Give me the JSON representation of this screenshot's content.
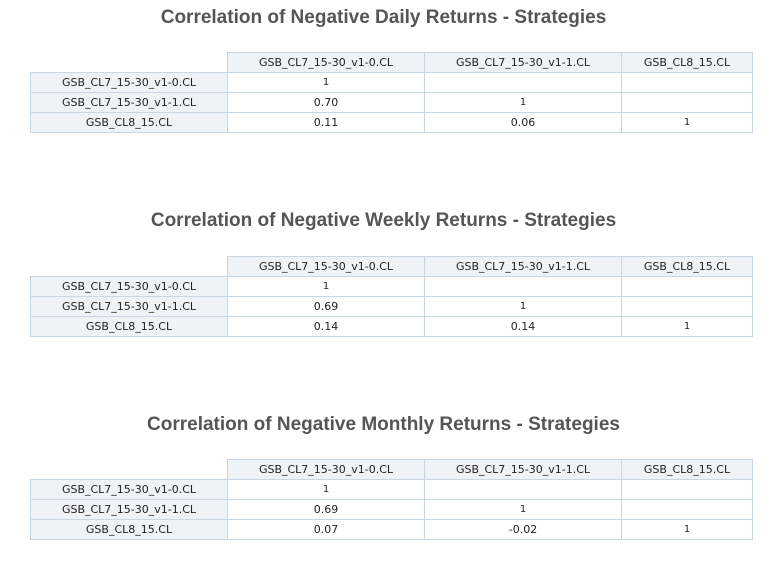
{
  "columns": [
    "GSB_CL7_15-30_v1-0.CL",
    "GSB_CL7_15-30_v1-1.CL",
    "GSB_CL8_15.CL"
  ],
  "rows": [
    "GSB_CL7_15-30_v1-0.CL",
    "GSB_CL7_15-30_v1-1.CL",
    "GSB_CL8_15.CL"
  ],
  "colors": {
    "title": "#555555",
    "header_bg": "#eef3f8",
    "border": "#c9d6e3",
    "diag": "#9a9a9a",
    "orange": "#f0a030",
    "green": "#2e9a2e",
    "light_green": "#8fd88f"
  },
  "tables": [
    {
      "title": "Correlation of Negative Daily Returns - Strategies",
      "cells": [
        [
          "1",
          "",
          ""
        ],
        [
          "0.70",
          "1",
          ""
        ],
        [
          "0.11",
          "0.06",
          "1"
        ]
      ]
    },
    {
      "title": "Correlation of Negative Weekly Returns - Strategies",
      "cells": [
        [
          "1",
          "",
          ""
        ],
        [
          "0.69",
          "1",
          ""
        ],
        [
          "0.14",
          "0.14",
          "1"
        ]
      ]
    },
    {
      "title": "Correlation of Negative Monthly Returns - Strategies",
      "cells": [
        [
          "1",
          "",
          ""
        ],
        [
          "0.69",
          "1",
          ""
        ],
        [
          "0.07",
          "-0.02",
          "1"
        ]
      ]
    }
  ]
}
